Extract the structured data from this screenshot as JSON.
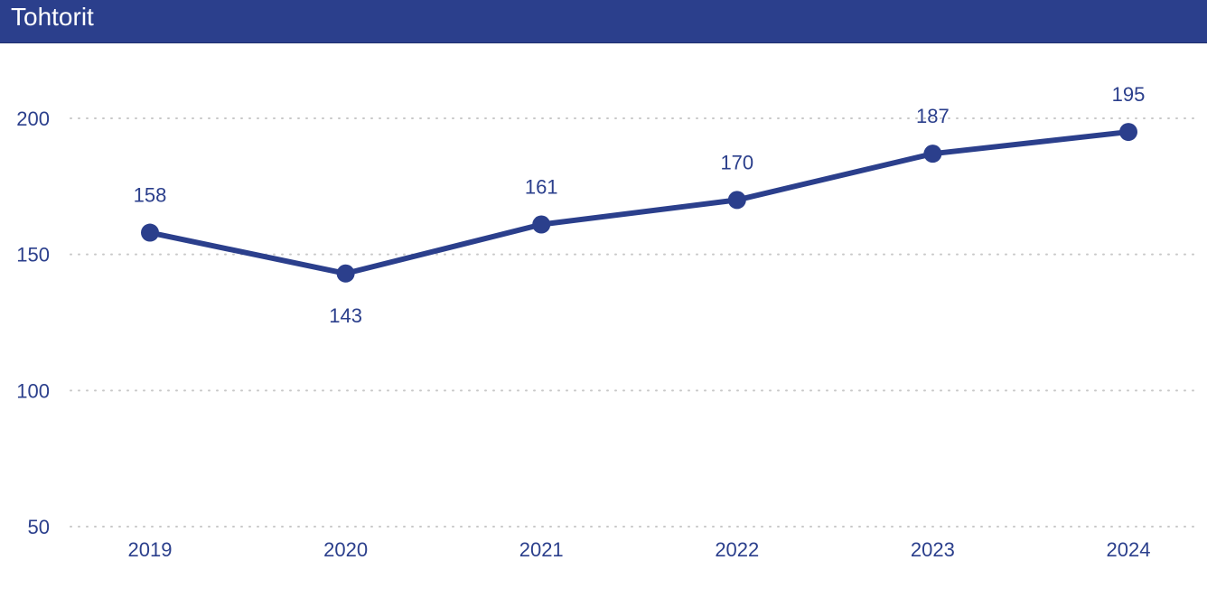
{
  "header": {
    "title": "Tohtorit"
  },
  "colors": {
    "header_bg": "#2b3f8c",
    "series": "#2b3f8c",
    "grid": "#c8c8c8",
    "text": "#2b3f8c"
  },
  "chart_data": {
    "type": "line",
    "title": "Tohtorit",
    "xlabel": "",
    "ylabel": "",
    "categories": [
      "2019",
      "2020",
      "2021",
      "2022",
      "2023",
      "2024"
    ],
    "series": [
      {
        "values": [
          158,
          143,
          161,
          170,
          187,
          195
        ]
      }
    ],
    "data_labels": [
      "158",
      "143",
      "161",
      "170",
      "187",
      "195"
    ],
    "y_ticks": [
      50,
      100,
      150,
      200
    ],
    "y_tick_labels": [
      "50",
      "100",
      "150",
      "200"
    ],
    "ylim": [
      50,
      217
    ],
    "grid": "horizontal-dotted",
    "legend": "none",
    "markers": true
  }
}
